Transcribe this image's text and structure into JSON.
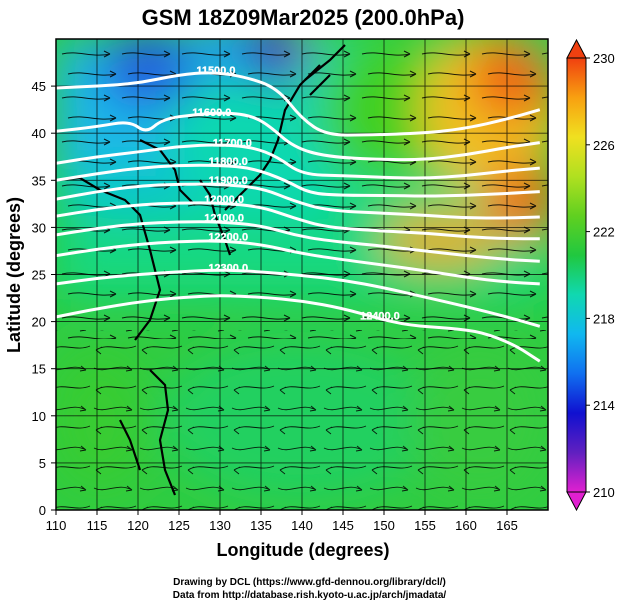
{
  "chart_data": {
    "type": "heatmap",
    "title": "GSM 18Z09Mar2025 (200.0hPa)",
    "xlabel": "Longitude (degrees)",
    "ylabel": "Latitude  (degrees)",
    "xlim": [
      110,
      170
    ],
    "ylim": [
      0,
      50
    ],
    "x_ticks": [
      "110",
      "115",
      "120",
      "125",
      "130",
      "135",
      "140",
      "145",
      "150",
      "155",
      "160",
      "165"
    ],
    "y_ticks": [
      "0",
      "5",
      "10",
      "15",
      "20",
      "25",
      "30",
      "35",
      "40",
      "45"
    ],
    "colorbar": {
      "min": 210,
      "max": 230,
      "ticks": [
        "210",
        "214",
        "218",
        "222",
        "226",
        "230"
      ],
      "colors": [
        "#e020d0",
        "#6020c0",
        "#1010d0",
        "#1070f0",
        "#10b8f0",
        "#10d8b0",
        "#20c840",
        "#60d020",
        "#b0e020",
        "#f0e020",
        "#f8a010",
        "#f04010"
      ]
    },
    "contours": [
      {
        "label": "11500.0",
        "label_lon": 129.5,
        "label_lat": 46.3,
        "points": [
          [
            110,
            44.8
          ],
          [
            115,
            45.0
          ],
          [
            120,
            45.3
          ],
          [
            125,
            46.2
          ],
          [
            129,
            46.5
          ],
          [
            133,
            46.0
          ],
          [
            137,
            44.8
          ],
          [
            140,
            41.5
          ],
          [
            143,
            39.8
          ],
          [
            148,
            39.8
          ],
          [
            155,
            40.0
          ],
          [
            160,
            40.5
          ],
          [
            165,
            41.5
          ],
          [
            169,
            42.5
          ]
        ]
      },
      {
        "label": "11600.0",
        "label_lon": 129.0,
        "label_lat": 41.8,
        "points": [
          [
            110,
            40.2
          ],
          [
            115,
            40.7
          ],
          [
            119,
            41.3
          ],
          [
            121,
            40.0
          ],
          [
            123,
            41.5
          ],
          [
            127,
            42.0
          ],
          [
            131,
            42.2
          ],
          [
            134,
            41.8
          ],
          [
            136,
            40.8
          ],
          [
            139,
            38.5
          ],
          [
            143,
            37.5
          ],
          [
            150,
            37.2
          ],
          [
            155,
            37.2
          ],
          [
            160,
            37.7
          ],
          [
            165,
            38.5
          ],
          [
            169,
            39.0
          ]
        ]
      },
      {
        "label": "11700.0",
        "label_lon": 131.5,
        "label_lat": 38.6,
        "points": [
          [
            110,
            36.8
          ],
          [
            115,
            37.5
          ],
          [
            120,
            38.0
          ],
          [
            125,
            38.6
          ],
          [
            130,
            38.8
          ],
          [
            134,
            38.5
          ],
          [
            137,
            37.5
          ],
          [
            140,
            35.6
          ],
          [
            145,
            35.5
          ],
          [
            150,
            35.3
          ],
          [
            155,
            35.2
          ],
          [
            160,
            35.5
          ],
          [
            165,
            36.0
          ],
          [
            169,
            36.3
          ]
        ]
      },
      {
        "label": "11800.0",
        "label_lon": 131.0,
        "label_lat": 36.6,
        "points": [
          [
            110,
            35.0
          ],
          [
            115,
            35.7
          ],
          [
            120,
            36.3
          ],
          [
            125,
            36.6
          ],
          [
            130,
            36.6
          ],
          [
            134,
            36.3
          ],
          [
            138,
            35.0
          ],
          [
            141,
            33.6
          ],
          [
            145,
            33.4
          ],
          [
            150,
            33.4
          ],
          [
            155,
            33.3
          ],
          [
            160,
            33.4
          ],
          [
            165,
            33.6
          ],
          [
            169,
            33.8
          ]
        ]
      },
      {
        "label": "11900.0",
        "label_lon": 131.0,
        "label_lat": 34.6,
        "points": [
          [
            110,
            33.0
          ],
          [
            115,
            33.8
          ],
          [
            120,
            34.4
          ],
          [
            125,
            34.6
          ],
          [
            130,
            34.6
          ],
          [
            135,
            34.2
          ],
          [
            139,
            32.8
          ],
          [
            143,
            31.8
          ],
          [
            150,
            31.5
          ],
          [
            155,
            31.3
          ],
          [
            160,
            31.0
          ],
          [
            165,
            31.0
          ],
          [
            169,
            31.1
          ]
        ]
      },
      {
        "label": "12000.0",
        "label_lon": 130.5,
        "label_lat": 32.6,
        "points": [
          [
            110,
            31.2
          ],
          [
            115,
            31.9
          ],
          [
            120,
            32.4
          ],
          [
            125,
            32.6
          ],
          [
            130,
            32.6
          ],
          [
            135,
            32.2
          ],
          [
            139,
            31.0
          ],
          [
            143,
            30.0
          ],
          [
            150,
            29.6
          ],
          [
            155,
            29.4
          ],
          [
            160,
            29.0
          ],
          [
            165,
            28.8
          ],
          [
            169,
            28.8
          ]
        ]
      },
      {
        "label": "12100.0",
        "label_lon": 130.5,
        "label_lat": 30.6,
        "points": [
          [
            110,
            29.2
          ],
          [
            115,
            29.9
          ],
          [
            120,
            30.4
          ],
          [
            125,
            30.6
          ],
          [
            130,
            30.6
          ],
          [
            135,
            30.2
          ],
          [
            139,
            29.2
          ],
          [
            143,
            28.6
          ],
          [
            150,
            28.0
          ],
          [
            155,
            27.5
          ],
          [
            160,
            27.0
          ],
          [
            165,
            26.6
          ],
          [
            169,
            26.4
          ]
        ]
      },
      {
        "label": "12200.0",
        "label_lon": 131.0,
        "label_lat": 28.6,
        "points": [
          [
            110,
            27.0
          ],
          [
            115,
            27.7
          ],
          [
            120,
            28.2
          ],
          [
            125,
            28.5
          ],
          [
            130,
            28.6
          ],
          [
            135,
            28.2
          ],
          [
            139,
            27.4
          ],
          [
            143,
            26.8
          ],
          [
            150,
            26.0
          ],
          [
            155,
            25.4
          ],
          [
            160,
            24.7
          ],
          [
            165,
            24.2
          ],
          [
            169,
            24.0
          ]
        ]
      },
      {
        "label": "12300.0",
        "label_lon": 131.0,
        "label_lat": 25.3,
        "points": [
          [
            110,
            24.0
          ],
          [
            115,
            24.6
          ],
          [
            120,
            25.0
          ],
          [
            125,
            25.3
          ],
          [
            130,
            25.5
          ],
          [
            135,
            25.3
          ],
          [
            140,
            24.9
          ],
          [
            145,
            24.4
          ],
          [
            150,
            23.6
          ],
          [
            155,
            22.6
          ],
          [
            160,
            21.6
          ],
          [
            165,
            20.5
          ],
          [
            169,
            19.5
          ]
        ]
      },
      {
        "label": "12400.0",
        "label_lon": 149.5,
        "label_lat": 20.2,
        "points": [
          [
            110,
            20.5
          ],
          [
            114,
            21.2
          ],
          [
            118,
            21.8
          ],
          [
            122,
            22.3
          ],
          [
            126,
            22.6
          ],
          [
            130,
            22.8
          ],
          [
            135,
            22.6
          ],
          [
            140,
            22.2
          ],
          [
            145,
            21.4
          ],
          [
            149,
            20.4
          ],
          [
            153,
            19.6
          ],
          [
            158,
            19.3
          ],
          [
            162,
            18.9
          ],
          [
            166,
            17.5
          ],
          [
            169,
            15.8
          ]
        ]
      }
    ]
  },
  "credits": {
    "drawing": "Drawing by DCL (https://www.gfd-dennou.org/library/dcl/)",
    "data": "Data from http://database.rish.kyoto-u.ac.jp/arch/jmadata/"
  }
}
